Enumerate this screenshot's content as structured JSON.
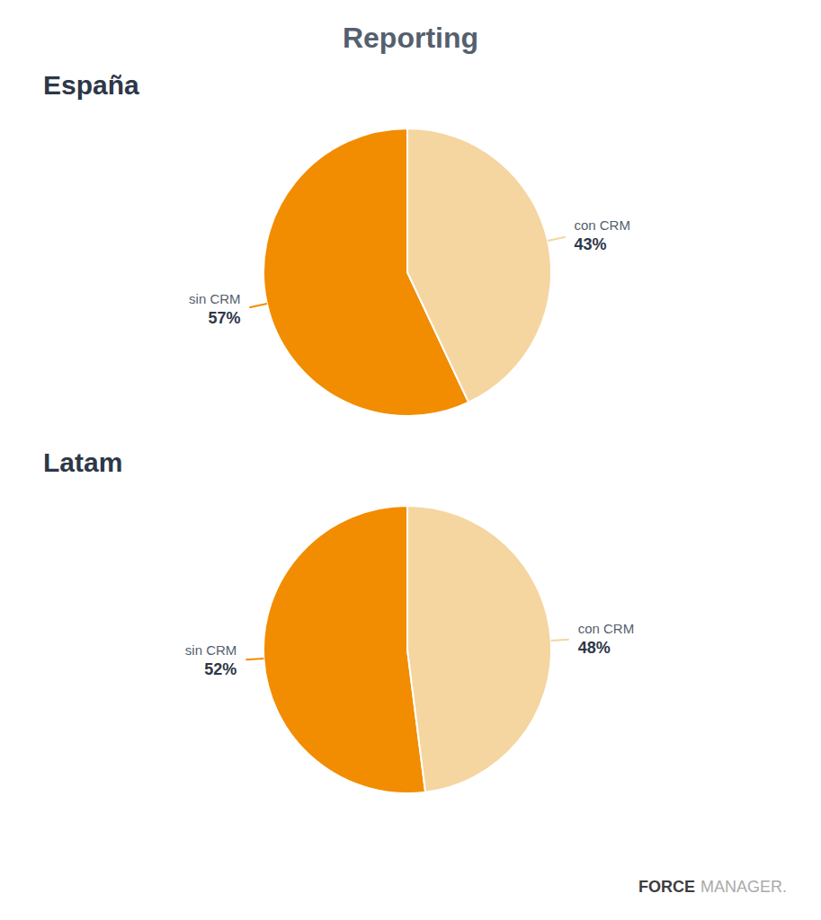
{
  "title": "Reporting",
  "annotations": [
    "FORCE",
    "MANAGER."
  ],
  "chart_data": [
    {
      "type": "pie",
      "title": "España",
      "categories": [
        "sin CRM",
        "con CRM"
      ],
      "values": [
        57,
        43
      ],
      "value_labels": [
        "57%",
        "43%"
      ],
      "colors": [
        "#f28c00",
        "#f5d5a0"
      ],
      "data_labels": true
    },
    {
      "type": "pie",
      "title": "Latam",
      "categories": [
        "sin CRM",
        "con CRM"
      ],
      "values": [
        52,
        48
      ],
      "value_labels": [
        "52%",
        "48%"
      ],
      "colors": [
        "#f28c00",
        "#f5d5a0"
      ],
      "data_labels": true
    }
  ]
}
